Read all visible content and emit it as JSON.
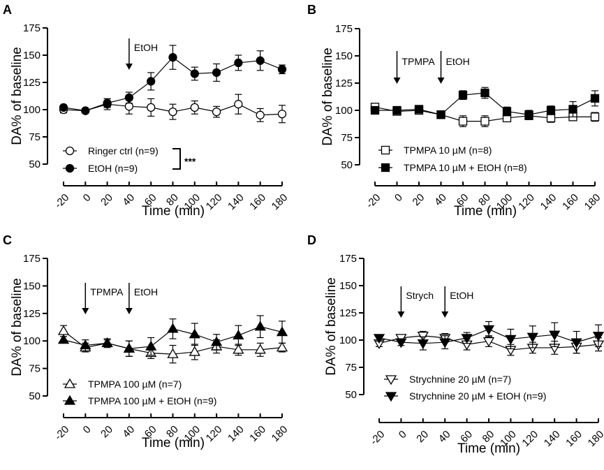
{
  "chart_data": [
    {
      "type": "line",
      "panel": "A",
      "xlabel": "Time (min)",
      "ylabel": "DA% of baseline",
      "x": [
        -20,
        0,
        20,
        40,
        60,
        80,
        100,
        120,
        140,
        160,
        180
      ],
      "xticks": [
        "-20",
        "0",
        "20",
        "40",
        "60",
        "80",
        "100",
        "120",
        "140",
        "160",
        "180"
      ],
      "yticks": [
        "50",
        "75",
        "100",
        "125",
        "150",
        "175"
      ],
      "ylim": [
        50,
        175
      ],
      "annotations": [
        {
          "label": "EtOH",
          "x": 40
        }
      ],
      "significance": "***",
      "legend_position": "bottom-left",
      "series": [
        {
          "name": "Ringer ctrl (n=9)",
          "marker": "circle",
          "filled": false,
          "values": [
            100,
            99,
            105,
            103,
            102,
            98,
            102,
            98,
            105,
            95,
            96
          ],
          "sem": [
            3,
            2,
            5,
            7,
            8,
            7,
            6,
            5,
            9,
            6,
            8
          ]
        },
        {
          "name": "EtOH (n=9)",
          "marker": "circle",
          "filled": true,
          "values": [
            102,
            99,
            106,
            111,
            126,
            148,
            133,
            134,
            143,
            145,
            137
          ],
          "sem": [
            2,
            2,
            4,
            5,
            8,
            11,
            6,
            8,
            7,
            9,
            4
          ]
        }
      ]
    },
    {
      "type": "line",
      "panel": "B",
      "xlabel": "Time (min)",
      "ylabel": "DA% of baseline",
      "x": [
        -20,
        0,
        20,
        40,
        60,
        80,
        100,
        120,
        140,
        160,
        180
      ],
      "xticks": [
        "-20",
        "0",
        "20",
        "40",
        "60",
        "80",
        "100",
        "120",
        "140",
        "160",
        "180"
      ],
      "yticks": [
        "50",
        "75",
        "100",
        "125",
        "150",
        "175"
      ],
      "ylim": [
        50,
        175
      ],
      "annotations": [
        {
          "label": "TPMPA",
          "x": 0
        },
        {
          "label": "EtOH",
          "x": 40
        }
      ],
      "legend_position": "bottom-left",
      "series": [
        {
          "name": "TPMPA 10 µM (n=8)",
          "marker": "square",
          "filled": false,
          "values": [
            103,
            99,
            100,
            96,
            90,
            90,
            93,
            95,
            93,
            94,
            94
          ],
          "sem": [
            3,
            2,
            3,
            3,
            5,
            5,
            3,
            3,
            4,
            3,
            4
          ]
        },
        {
          "name": "TPMPA 10 µM + EtOH (n=8)",
          "marker": "square",
          "filled": true,
          "values": [
            100,
            100,
            101,
            96,
            114,
            116,
            99,
            96,
            100,
            101,
            111
          ],
          "sem": [
            3,
            2,
            3,
            3,
            4,
            5,
            4,
            4,
            4,
            7,
            7
          ]
        }
      ]
    },
    {
      "type": "line",
      "panel": "C",
      "xlabel": "Time (min)",
      "ylabel": "DA% of baseline",
      "x": [
        -20,
        0,
        20,
        40,
        60,
        80,
        100,
        120,
        140,
        160,
        180
      ],
      "xticks": [
        "-20",
        "0",
        "20",
        "40",
        "60",
        "80",
        "100",
        "120",
        "140",
        "160",
        "180"
      ],
      "yticks": [
        "50",
        "75",
        "100",
        "125",
        "150",
        "175"
      ],
      "ylim": [
        50,
        175
      ],
      "annotations": [
        {
          "label": "TPMPA",
          "x": 0
        },
        {
          "label": "EtOH",
          "x": 40
        }
      ],
      "legend_position": "bottom-left",
      "series": [
        {
          "name": "TPMPA 100 µM (n=7)",
          "marker": "triangle-up",
          "filled": false,
          "values": [
            109,
            94,
            98,
            93,
            89,
            88,
            90,
            95,
            92,
            92,
            94
          ],
          "sem": [
            5,
            4,
            4,
            7,
            5,
            8,
            7,
            6,
            5,
            6,
            4
          ]
        },
        {
          "name": "TPMPA 100 µM + EtOH (n=9)",
          "marker": "triangle-up",
          "filled": true,
          "values": [
            101,
            96,
            98,
            93,
            95,
            111,
            106,
            99,
            105,
            113,
            108
          ],
          "sem": [
            3,
            5,
            3,
            7,
            8,
            9,
            10,
            7,
            9,
            10,
            10
          ]
        }
      ]
    },
    {
      "type": "line",
      "panel": "D",
      "xlabel": "Time (min)",
      "ylabel": "DA% of baseline",
      "x": [
        -20,
        0,
        20,
        40,
        60,
        80,
        100,
        120,
        140,
        160,
        180
      ],
      "xticks": [
        "-20",
        "0",
        "20",
        "40",
        "60",
        "80",
        "100",
        "120",
        "140",
        "160",
        "180"
      ],
      "yticks": [
        "50",
        "75",
        "100",
        "125",
        "150",
        "175"
      ],
      "ylim": [
        50,
        175
      ],
      "annotations": [
        {
          "label": "Strych",
          "x": 0
        },
        {
          "label": "EtOH",
          "x": 40
        }
      ],
      "legend_position": "bottom-left",
      "series": [
        {
          "name": "Strychnine 20 µM (n=7)",
          "marker": "triangle-down",
          "filled": false,
          "values": [
            97,
            102,
            104,
            102,
            96,
            99,
            91,
            93,
            93,
            94,
            96
          ],
          "sem": [
            3,
            3,
            4,
            4,
            5,
            5,
            5,
            5,
            6,
            6,
            6
          ]
        },
        {
          "name": "Strychnine 20 µM + EtOH (n=9)",
          "marker": "triangle-down",
          "filled": true,
          "values": [
            102,
            98,
            97,
            98,
            102,
            110,
            101,
            103,
            105,
            98,
            104
          ],
          "sem": [
            3,
            3,
            6,
            6,
            5,
            7,
            9,
            10,
            11,
            10,
            10
          ]
        }
      ]
    }
  ]
}
